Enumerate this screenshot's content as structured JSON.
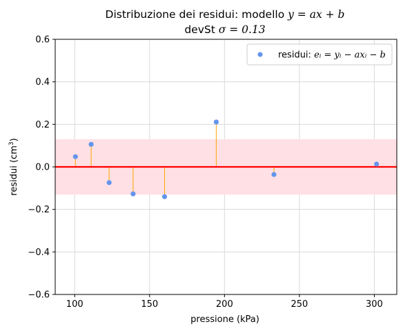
{
  "chart_data": {
    "type": "scatter",
    "title_line1_prefix": "Distribuzione dei residui: modello ",
    "title_line1_math": "y = ax + b",
    "title_line2_prefix": "devSt ",
    "title_line2_math": "σ = 0.13",
    "xlabel": "pressione (kPa)",
    "ylabel_prefix": "residui (cm",
    "ylabel_sup": "3",
    "ylabel_suffix": ")",
    "xlim": [
      87,
      315
    ],
    "ylim": [
      -0.6,
      0.6
    ],
    "xticks": [
      100,
      150,
      200,
      250,
      300
    ],
    "xtick_labels": [
      "100",
      "150",
      "200",
      "250",
      "300"
    ],
    "yticks": [
      -0.6,
      -0.4,
      -0.2,
      0.0,
      0.2,
      0.4,
      0.6
    ],
    "ytick_labels": [
      "−0.6",
      "−0.4",
      "−0.2",
      "0.0",
      "0.2",
      "0.4",
      "0.6"
    ],
    "grid": true,
    "std_band": 0.13,
    "zero_line": 0,
    "legend": {
      "placement": "top-right",
      "label_prefix": "residui: ",
      "label_math": "eᵢ = yᵢ − axᵢ − b"
    },
    "series": [
      {
        "x": [
          100.5,
          111,
          123,
          139,
          160,
          194.5,
          233,
          301.5
        ],
        "y": [
          0.048,
          0.106,
          -0.074,
          -0.127,
          -0.14,
          0.211,
          -0.036,
          0.013
        ]
      }
    ],
    "colors": {
      "points": "#6495ed",
      "stems": "#ffa500",
      "zero_line": "#ff0000",
      "band": "#ffe0e4",
      "grid": "#d9d9d9"
    }
  }
}
